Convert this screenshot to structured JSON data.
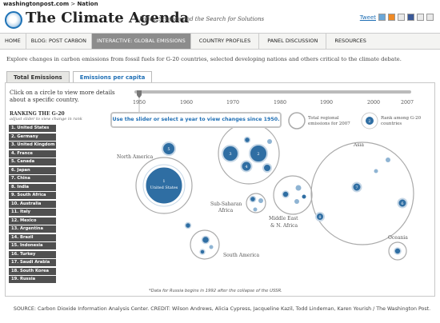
{
  "site": {
    "domain": "washingtonpost.com",
    "sep": " > ",
    "section": "Nation"
  },
  "header": {
    "title": "The Climate Agenda",
    "subtitle": "Policy, Science and the Search for Solutions"
  },
  "share": {
    "tweet": "Tweet"
  },
  "nav": [
    "HOME",
    "BLOG: POST CARBON",
    "INTERACTIVE: GLOBAL EMISSIONS",
    "COUNTRY PROFILES",
    "PANEL DISCUSSION",
    "RESOURCES"
  ],
  "intro": "Explore changes in carbon emissions from fossil fuels for G-20 countries, selected developing nations and others critical to the climate debate.",
  "tabs": {
    "total": "Total Emissions",
    "percap": "Emissions per capita"
  },
  "instructions": "Click on a circle to view more details about a specific country.",
  "ranking": {
    "title": "RANKING THE G-20",
    "subtitle": "adjust slider to view change in rank",
    "items": [
      "1. United States",
      "2. Germany",
      "3. United Kingdom",
      "4. France",
      "5. Canada",
      "6. Japan",
      "7. China",
      "8. India",
      "9. South Africa",
      "10. Australia",
      "11. Italy",
      "12. Mexico",
      "13. Argentina",
      "14. Brazil",
      "15. Indonesia",
      "16. Turkey",
      "17. Saudi Arabia",
      "18. South Korea",
      "19. Russia"
    ]
  },
  "slider": {
    "years": [
      "1950",
      "1960",
      "1970",
      "1980",
      "1990",
      "2000",
      "2007"
    ],
    "selected": "1950"
  },
  "tooltip": "Use the slider or select a year to view changes since 1950.",
  "legend": {
    "total": "Total regional emissions for 2007",
    "rank": "Rank among G-20 countries",
    "rank_sample": "2"
  },
  "regions": {
    "north_america": "North America",
    "south_america": "South America",
    "africa": "Sub-Saharan Africa",
    "mideast": "Middle East & N. Africa",
    "asia": "Asia",
    "oceania": "Oceania"
  },
  "us_label": "United States",
  "circle_ranks": {
    "us": "1",
    "canada": "5",
    "germany": "2",
    "uk": "3",
    "france": "4",
    "china": "7",
    "india": "8",
    "japan": "6",
    "australia": "10"
  },
  "footnote": "*Data for Russia begins in 1992 after the collapse of the USSR.",
  "source": "SOURCE: Carbon Dioxide Information Analysis Center. CREDIT: Wilson Andrews, Alicia Cypress, Jacqueline Kazil, Todd Lindeman, Karen Yourish / The Washington Post.",
  "colors": {
    "bubble": "#2f6ea3",
    "bubble_light": "#8fb4d3",
    "ring": "#a9a9a9",
    "rank_bg": "#505050",
    "active_nav": "#8c8c8c",
    "link": "#1f6fb5"
  }
}
